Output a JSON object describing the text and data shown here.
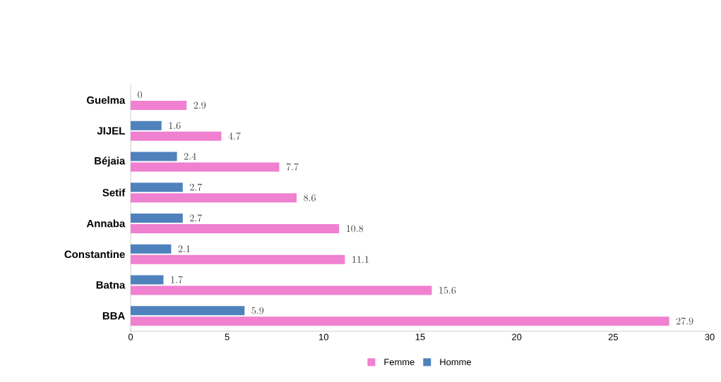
{
  "chart_data": {
    "type": "bar",
    "orientation": "horizontal",
    "categories": [
      "Guelma",
      "JIJEL",
      "Béjaia",
      "Setif",
      "Annaba",
      "Constantine",
      "Batna",
      "BBA"
    ],
    "series": [
      {
        "name": "Femme",
        "color": "#f080d0",
        "values": [
          2.9,
          4.7,
          7.7,
          8.6,
          10.8,
          11.1,
          15.6,
          27.9
        ]
      },
      {
        "name": "Homme",
        "color": "#4f81bd",
        "values": [
          0,
          1.6,
          2.4,
          2.7,
          2.7,
          2.1,
          1.7,
          5.9
        ]
      }
    ],
    "xlim": [
      0,
      30
    ],
    "xticks": [
      0,
      5,
      10,
      15,
      20,
      25,
      30
    ],
    "data_labels": true,
    "legend": "bottom"
  }
}
